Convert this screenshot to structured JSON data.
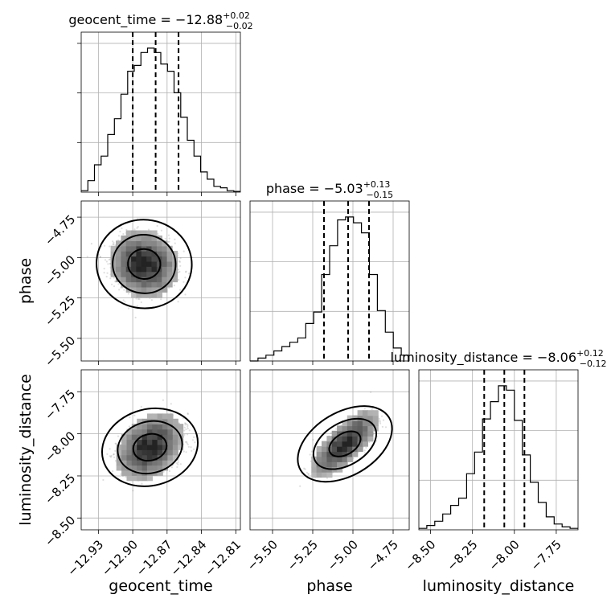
{
  "chart_data": {
    "type": "corner",
    "parameters": [
      {
        "name": "geocent_time",
        "label": "geocent_time",
        "title_text": "geocent_time = −12.88",
        "title_sup": "+0.02",
        "title_sub": "−0.02",
        "median": -12.88,
        "q_low": -12.9,
        "q_high": -12.86,
        "range": [
          -12.945,
          -12.806
        ],
        "ticks": [
          -12.93,
          -12.9,
          -12.87,
          -12.84,
          -12.81
        ],
        "tick_labels": [
          "−12.93",
          "−12.90",
          "−12.87",
          "−12.84",
          "−12.81"
        ],
        "hist": [
          0.01,
          0.08,
          0.19,
          0.25,
          0.4,
          0.51,
          0.68,
          0.84,
          0.88,
          0.97,
          1.0,
          0.97,
          0.89,
          0.84,
          0.69,
          0.52,
          0.36,
          0.25,
          0.14,
          0.09,
          0.04,
          0.03,
          0.01,
          0.005
        ]
      },
      {
        "name": "phase",
        "label": "phase",
        "title_text": "phase = −5.03",
        "title_sup": "+0.13",
        "title_sub": "−0.15",
        "median": -5.03,
        "q_low": -5.18,
        "q_high": -4.9,
        "range": [
          -5.64,
          -4.65
        ],
        "ticks": [
          -5.5,
          -5.25,
          -5.0,
          -4.75
        ],
        "tick_labels": [
          "−5.50",
          "−5.25",
          "−5.00",
          "−4.75"
        ],
        "hist": [
          0.0,
          0.02,
          0.04,
          0.07,
          0.1,
          0.13,
          0.16,
          0.26,
          0.34,
          0.6,
          0.8,
          0.98,
          1.0,
          0.96,
          0.89,
          0.6,
          0.35,
          0.2,
          0.09,
          0.04
        ]
      },
      {
        "name": "luminosity_distance",
        "label": "luminosity_distance",
        "title_text": "luminosity_distance = −8.06",
        "title_sup": "+0.12",
        "title_sub": "−0.12",
        "median": -8.06,
        "q_low": -8.18,
        "q_high": -7.94,
        "range": [
          -8.57,
          -7.62
        ],
        "ticks": [
          -8.5,
          -8.25,
          -8.0,
          -7.75
        ],
        "tick_labels": [
          "−8.50",
          "−8.25",
          "−8.00",
          "−7.75"
        ],
        "hist": [
          0.01,
          0.03,
          0.06,
          0.11,
          0.17,
          0.22,
          0.39,
          0.54,
          0.77,
          0.89,
          1.0,
          0.97,
          0.76,
          0.52,
          0.33,
          0.19,
          0.09,
          0.04,
          0.02,
          0.01
        ]
      }
    ],
    "y_ticks_hist_col0": [
      0.31,
      0.62,
      0.93
    ],
    "y_tick_labels": {
      "phase": [
        "−4.75",
        "−5.00",
        "−5.25",
        "−5.50"
      ],
      "luminosity_distance": [
        "−7.75",
        "−8.00",
        "−8.25",
        "−8.50"
      ]
    },
    "pairs": [
      {
        "x": "geocent_time",
        "y": "phase",
        "peak_x": -12.89,
        "peak_y": -5.04,
        "contours_sigma_x": [
          0.011,
          0.021,
          0.032
        ],
        "contours_sigma_y": [
          0.07,
          0.14,
          0.21
        ],
        "correlation": -0.1
      },
      {
        "x": "geocent_time",
        "y": "luminosity_distance",
        "peak_x": -12.885,
        "peak_y": -8.08,
        "contours_sigma_x": [
          0.011,
          0.021,
          0.031
        ],
        "contours_sigma_y": [
          0.06,
          0.12,
          0.18
        ],
        "correlation": 0.35
      },
      {
        "x": "phase",
        "y": "luminosity_distance",
        "peak_x": -5.05,
        "peak_y": -8.06,
        "contours_sigma_x": [
          0.07,
          0.14,
          0.21
        ],
        "contours_sigma_y": [
          0.06,
          0.12,
          0.18
        ],
        "correlation": 0.75
      }
    ],
    "colors": {
      "line": "#000000",
      "grid": "#b0b0b0",
      "points": "#7f7f7f"
    },
    "grid": true
  }
}
